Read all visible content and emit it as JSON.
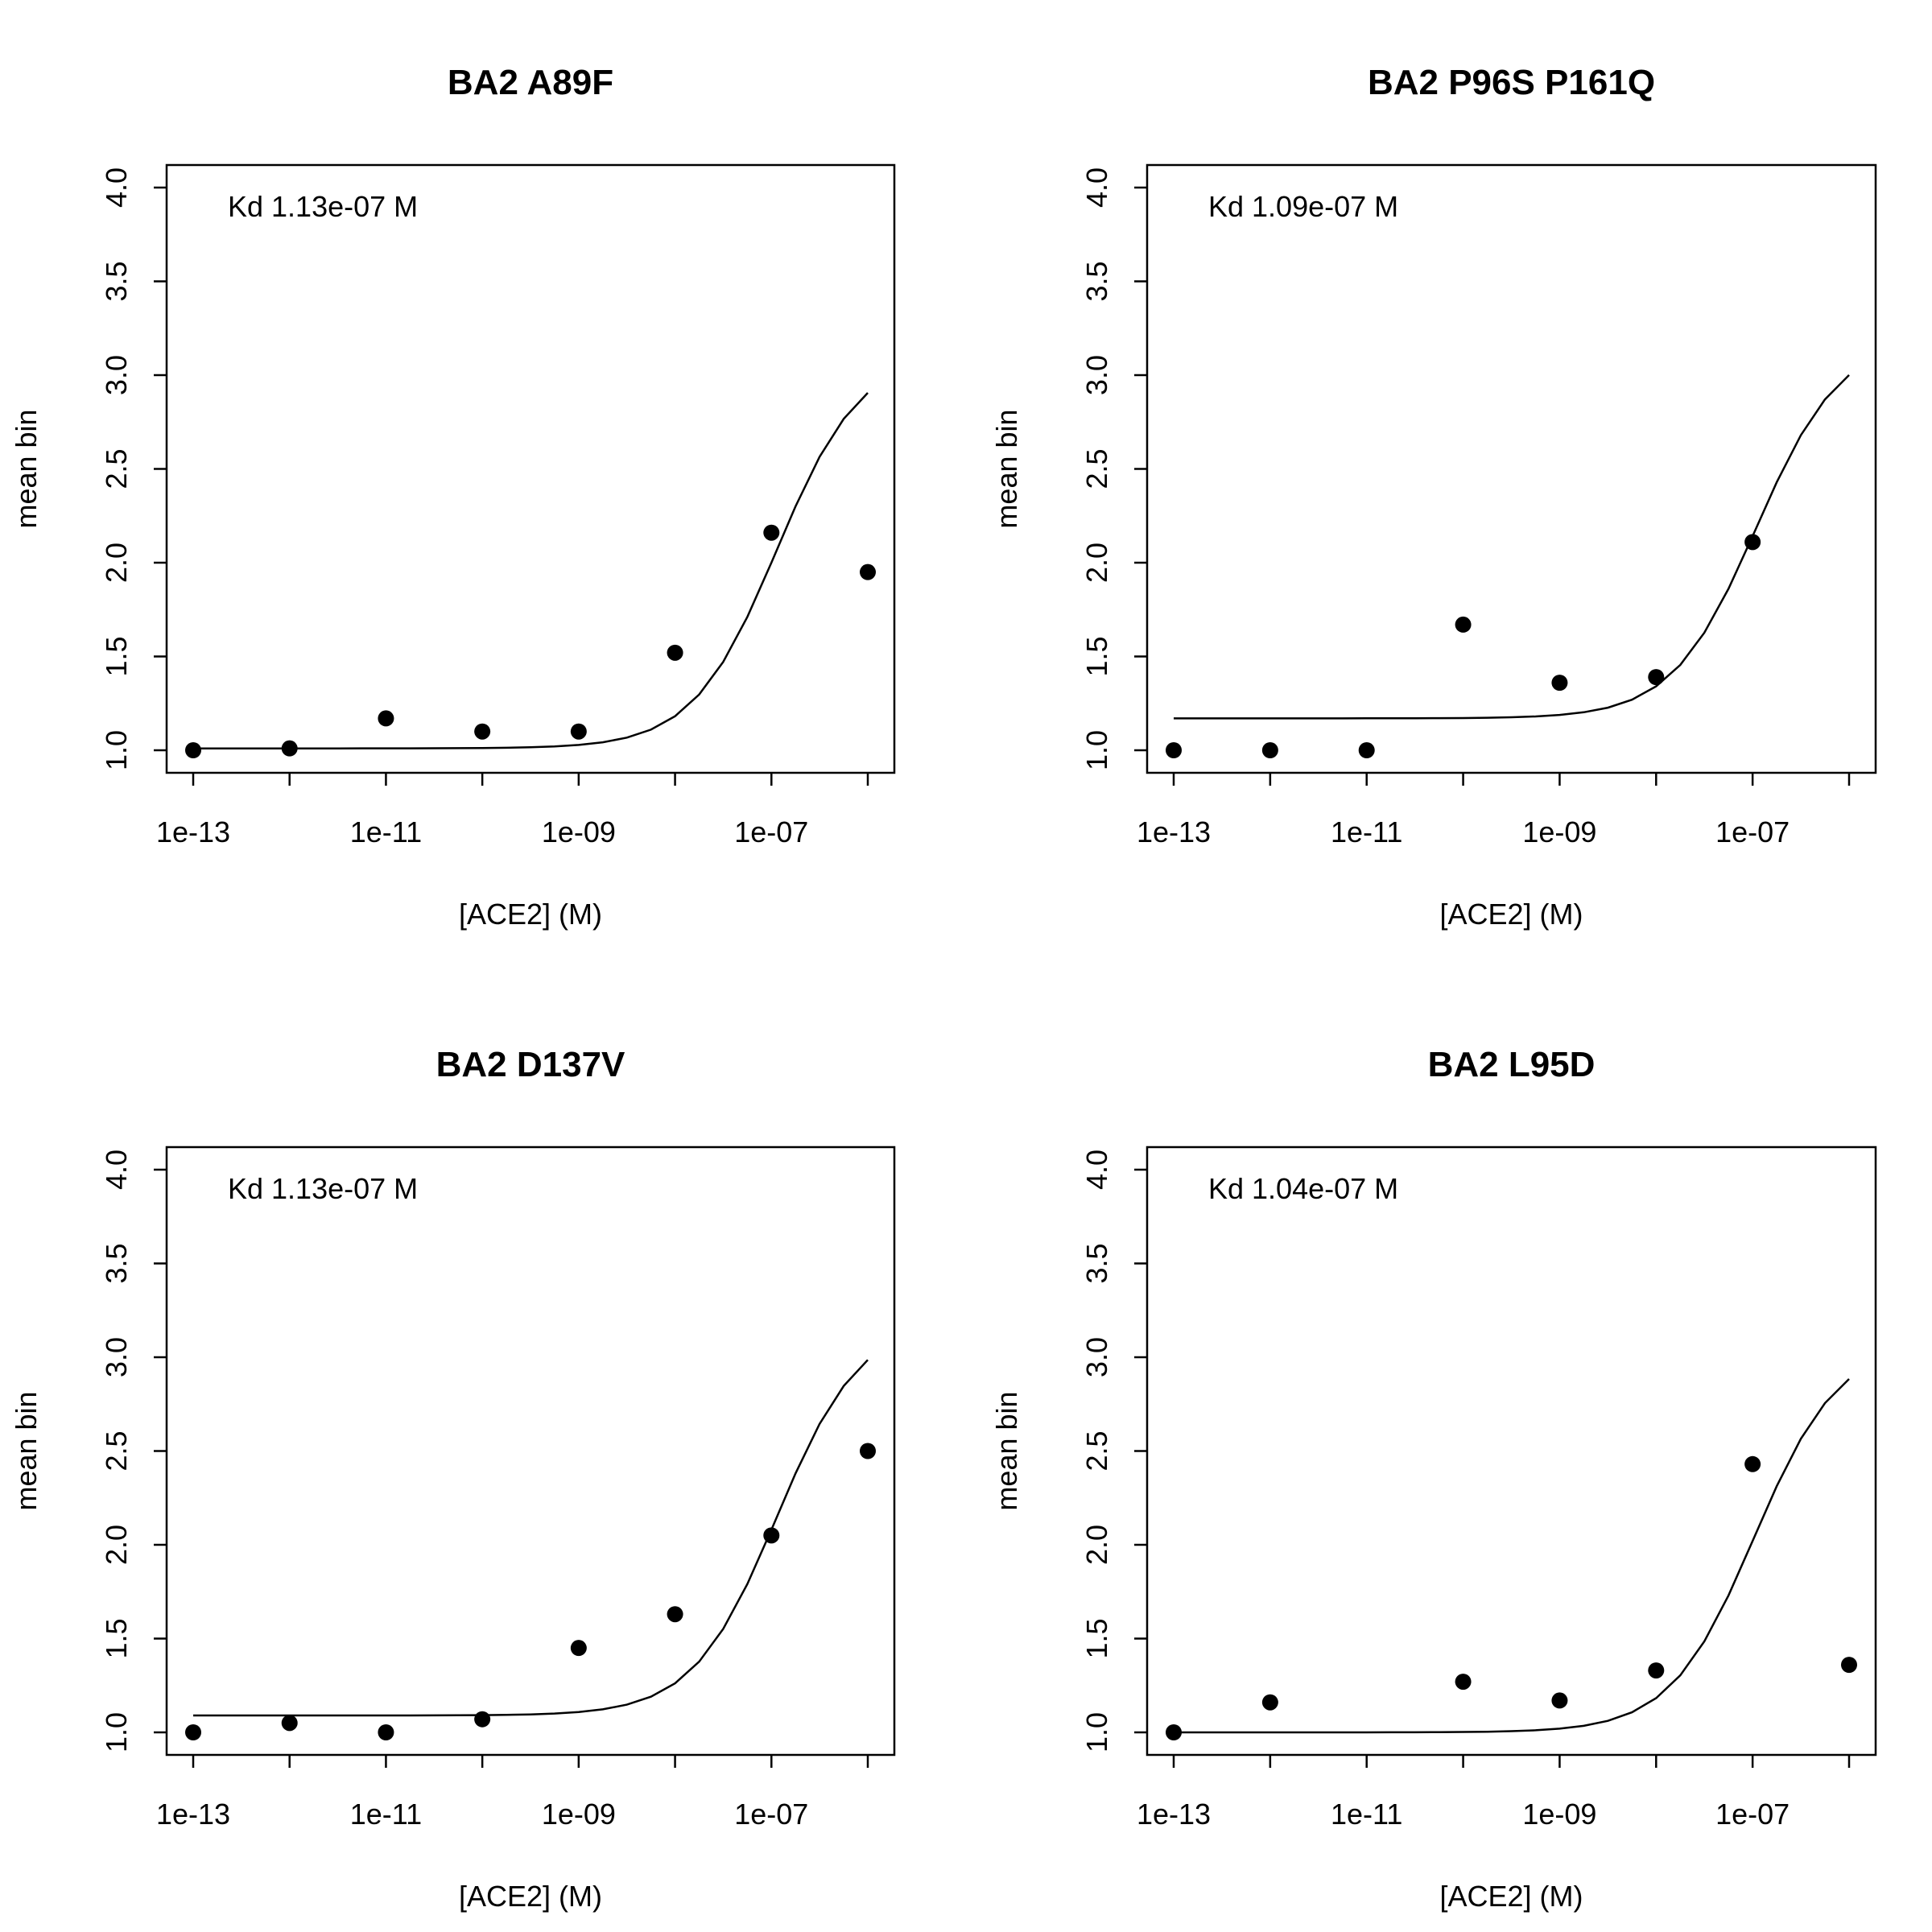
{
  "chart_data": [
    {
      "type": "scatter",
      "title": "BA2 A89F",
      "xlabel": "[ACE2] (M)",
      "ylabel": "mean bin",
      "annotation": "Kd 1.13e-07 M",
      "x_scale": "log",
      "xlim": [
        1e-13,
        1e-06
      ],
      "ylim": [
        1.0,
        4.0
      ],
      "x_ticks": [
        "1e-13",
        "1e-11",
        "1e-09",
        "1e-07"
      ],
      "y_ticks": [
        "1.0",
        "1.5",
        "2.0",
        "2.5",
        "3.0",
        "3.5",
        "4.0"
      ],
      "points": {
        "x": [
          1e-13,
          1e-12,
          1e-11,
          1e-10,
          1e-09,
          1e-08,
          1e-07,
          1e-06
        ],
        "y": [
          1.0,
          1.01,
          1.17,
          1.1,
          1.1,
          1.52,
          2.16,
          1.95
        ]
      },
      "fit": {
        "kd": 1.13e-07,
        "lower": 1.01,
        "upper": 3.12
      }
    },
    {
      "type": "scatter",
      "title": "BA2 P96S P161Q",
      "xlabel": "[ACE2] (M)",
      "ylabel": "mean bin",
      "annotation": "Kd 1.09e-07 M",
      "x_scale": "log",
      "xlim": [
        1e-13,
        1e-06
      ],
      "ylim": [
        1.0,
        4.0
      ],
      "x_ticks": [
        "1e-13",
        "1e-11",
        "1e-09",
        "1e-07"
      ],
      "y_ticks": [
        "1.0",
        "1.5",
        "2.0",
        "2.5",
        "3.0",
        "3.5",
        "4.0"
      ],
      "points": {
        "x": [
          1e-13,
          1e-12,
          1e-11,
          1e-10,
          1e-09,
          1e-08,
          1e-07
        ],
        "y": [
          1.0,
          1.0,
          1.0,
          1.67,
          1.36,
          1.39,
          2.11
        ]
      },
      "fit": {
        "kd": 1.09e-07,
        "lower": 1.17,
        "upper": 3.2
      }
    },
    {
      "type": "scatter",
      "title": "BA2 D137V",
      "xlabel": "[ACE2] (M)",
      "ylabel": "mean bin",
      "annotation": "Kd 1.13e-07 M",
      "x_scale": "log",
      "xlim": [
        1e-13,
        1e-06
      ],
      "ylim": [
        1.0,
        4.0
      ],
      "x_ticks": [
        "1e-13",
        "1e-11",
        "1e-09",
        "1e-07"
      ],
      "y_ticks": [
        "1.0",
        "1.5",
        "2.0",
        "2.5",
        "3.0",
        "3.5",
        "4.0"
      ],
      "points": {
        "x": [
          1e-13,
          1e-12,
          1e-11,
          1e-10,
          1e-09,
          1e-08,
          1e-07,
          1e-06
        ],
        "y": [
          1.0,
          1.05,
          1.0,
          1.07,
          1.45,
          1.63,
          2.05,
          2.5
        ]
      },
      "fit": {
        "kd": 1.13e-07,
        "lower": 1.09,
        "upper": 3.2
      }
    },
    {
      "type": "scatter",
      "title": "BA2 L95D",
      "xlabel": "[ACE2] (M)",
      "ylabel": "mean bin",
      "annotation": "Kd 1.04e-07 M",
      "x_scale": "log",
      "xlim": [
        1e-13,
        1e-06
      ],
      "ylim": [
        1.0,
        4.0
      ],
      "x_ticks": [
        "1e-13",
        "1e-11",
        "1e-09",
        "1e-07"
      ],
      "y_ticks": [
        "1.0",
        "1.5",
        "2.0",
        "2.5",
        "3.0",
        "3.5",
        "4.0"
      ],
      "points": {
        "x": [
          1e-13,
          1e-12,
          1e-10,
          1e-09,
          1e-08,
          1e-07,
          1e-06
        ],
        "y": [
          1.0,
          1.16,
          1.27,
          1.17,
          1.33,
          2.43,
          1.36
        ]
      },
      "fit": {
        "kd": 1.04e-07,
        "lower": 1.0,
        "upper": 3.08
      }
    }
  ]
}
